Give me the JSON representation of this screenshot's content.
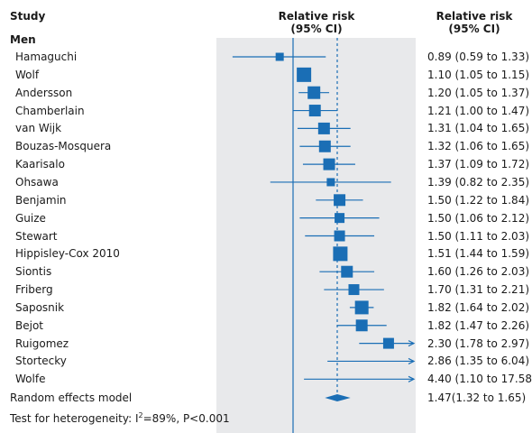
{
  "header": {
    "study": "Study",
    "rr_plot_line1": "Relative risk",
    "rr_plot_line2": "(95% CI)",
    "rr_col_line1": "Relative risk",
    "rr_col_line2": "(95% CI)"
  },
  "group_label": "Men",
  "colors": {
    "marker": "#1a6eb5",
    "panel": "#e8e9eb"
  },
  "chart_data": {
    "type": "forest",
    "rows": [
      {
        "study": "Hamaguchi",
        "rr": 0.89,
        "lo": 0.59,
        "hi": 1.33,
        "text": "0.89 (0.59 to 1.33)",
        "size": 9
      },
      {
        "study": "Wolf",
        "rr": 1.1,
        "lo": 1.05,
        "hi": 1.15,
        "text": "1.10 (1.05 to 1.15)",
        "size": 16
      },
      {
        "study": "Andersson",
        "rr": 1.2,
        "lo": 1.05,
        "hi": 1.37,
        "text": "1.20 (1.05 to 1.37)",
        "size": 14
      },
      {
        "study": "Chamberlain",
        "rr": 1.21,
        "lo": 1.0,
        "hi": 1.47,
        "text": "1.21 (1.00 to 1.47)",
        "size": 13
      },
      {
        "study": "van Wijk",
        "rr": 1.31,
        "lo": 1.04,
        "hi": 1.65,
        "text": "1.31 (1.04 to 1.65)",
        "size": 13
      },
      {
        "study": "Bouzas-Mosquera",
        "rr": 1.32,
        "lo": 1.06,
        "hi": 1.65,
        "text": "1.32 (1.06 to 1.65)",
        "size": 13
      },
      {
        "study": "Kaarisalo",
        "rr": 1.37,
        "lo": 1.09,
        "hi": 1.72,
        "text": "1.37 (1.09 to 1.72)",
        "size": 13
      },
      {
        "study": "Ohsawa",
        "rr": 1.39,
        "lo": 0.82,
        "hi": 2.35,
        "text": "1.39 (0.82 to 2.35)",
        "size": 9
      },
      {
        "study": "Benjamin",
        "rr": 1.5,
        "lo": 1.22,
        "hi": 1.84,
        "text": "1.50 (1.22 to 1.84)",
        "size": 13
      },
      {
        "study": "Guize",
        "rr": 1.5,
        "lo": 1.06,
        "hi": 2.12,
        "text": "1.50 (1.06 to 2.12)",
        "size": 11
      },
      {
        "study": "Stewart",
        "rr": 1.5,
        "lo": 1.11,
        "hi": 2.03,
        "text": "1.50 (1.11 to 2.03)",
        "size": 12
      },
      {
        "study": "Hippisley-Cox 2010",
        "rr": 1.51,
        "lo": 1.44,
        "hi": 1.59,
        "text": "1.51 (1.44 to 1.59)",
        "size": 16
      },
      {
        "study": "Siontis",
        "rr": 1.6,
        "lo": 1.26,
        "hi": 2.03,
        "text": "1.60 (1.26 to 2.03)",
        "size": 13
      },
      {
        "study": "Friberg",
        "rr": 1.7,
        "lo": 1.31,
        "hi": 2.21,
        "text": "1.70 (1.31 to 2.21)",
        "size": 12
      },
      {
        "study": "Saposnik",
        "rr": 1.82,
        "lo": 1.64,
        "hi": 2.02,
        "text": "1.82 (1.64 to 2.02)",
        "size": 15
      },
      {
        "study": "Bejot",
        "rr": 1.82,
        "lo": 1.47,
        "hi": 2.26,
        "text": "1.82 (1.47 to 2.26)",
        "size": 13
      },
      {
        "study": "Ruigomez",
        "rr": 2.3,
        "lo": 1.78,
        "hi": 2.97,
        "text": "2.30 (1.78 to 2.97)",
        "size": 12
      },
      {
        "study": "Stortecky",
        "rr": 2.86,
        "lo": 1.35,
        "hi": 6.04,
        "text": "2.86 (1.35 to 6.04)",
        "size": 0
      },
      {
        "study": "Wolfe",
        "rr": 4.4,
        "lo": 1.1,
        "hi": 17.58,
        "text": "4.40 (1.10 to 17.58)",
        "size": 0
      }
    ],
    "pooled": {
      "label": "Random effects model",
      "rr": 1.47,
      "lo": 1.32,
      "hi": 1.65,
      "text": "1.47(1.32 to 1.65)"
    },
    "heterogeneity_prefix": "Test for heterogeneity: I",
    "heterogeneity_sup": "2",
    "heterogeneity_suffix": "=89%, P<0.001",
    "null_value": 1,
    "scale": "log",
    "x_range": [
      0.5,
      3.5
    ]
  }
}
